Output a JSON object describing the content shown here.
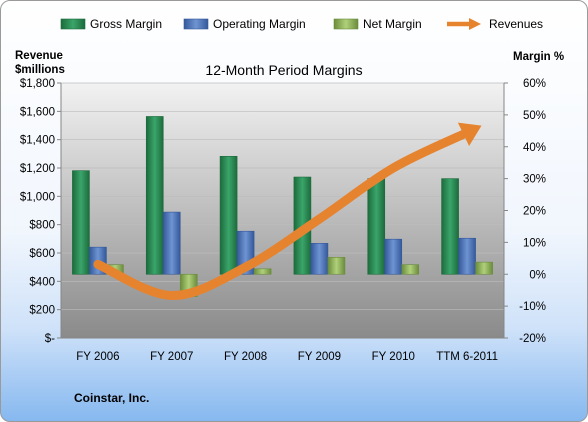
{
  "chart_data": {
    "type": "bar",
    "title": "12-Month Period Margins",
    "categories": [
      "FY 2006",
      "FY 2007",
      "FY 2008",
      "FY 2009",
      "FY 2010",
      "TTM 6-2011"
    ],
    "series": [
      {
        "name": "Gross Margin",
        "axis": "right",
        "color": "#2e8b57",
        "values": [
          32.5,
          49.5,
          37.0,
          30.5,
          30.0,
          30.0
        ]
      },
      {
        "name": "Operating Margin",
        "axis": "right",
        "color": "#4f74b8",
        "values": [
          8.5,
          19.5,
          13.5,
          9.7,
          11.0,
          11.3
        ]
      },
      {
        "name": "Net Margin",
        "axis": "right",
        "color": "#8cae5a",
        "values": [
          3.0,
          -7.0,
          1.7,
          5.3,
          3.0,
          3.8
        ]
      },
      {
        "name": "Revenues",
        "axis": "left",
        "type": "line",
        "color": "#e6832f",
        "values": [
          520,
          300,
          500,
          840,
          1200,
          1450
        ]
      }
    ],
    "y_left": {
      "label": "Revenue $millions",
      "label_lines": [
        "Revenue",
        "$millions"
      ],
      "range": [
        0,
        1800
      ],
      "ticks": [
        "$-",
        "$200",
        "$400",
        "$600",
        "$800",
        "$1,000",
        "$1,200",
        "$1,400",
        "$1,600",
        "$1,800"
      ]
    },
    "y_right": {
      "label": "Margin %",
      "range": [
        -20,
        60
      ],
      "ticks": [
        "-20%",
        "-10%",
        "0%",
        "10%",
        "20%",
        "30%",
        "40%",
        "50%",
        "60%"
      ]
    },
    "legend_position": "top",
    "gridlines": true
  },
  "footer": {
    "company": "Coinstar, Inc."
  }
}
